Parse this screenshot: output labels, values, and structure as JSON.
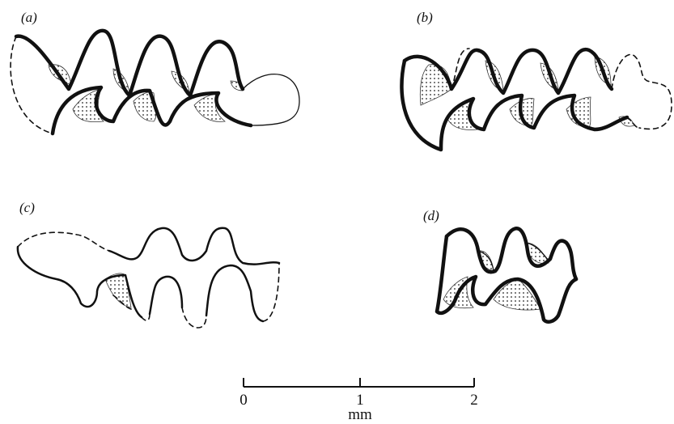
{
  "panels": {
    "a": "(a)",
    "b": "(b)",
    "c": "(c)",
    "d": "(d)"
  },
  "scale_bar": {
    "ticks": [
      "0",
      "1",
      "2"
    ],
    "unit": "mm"
  }
}
